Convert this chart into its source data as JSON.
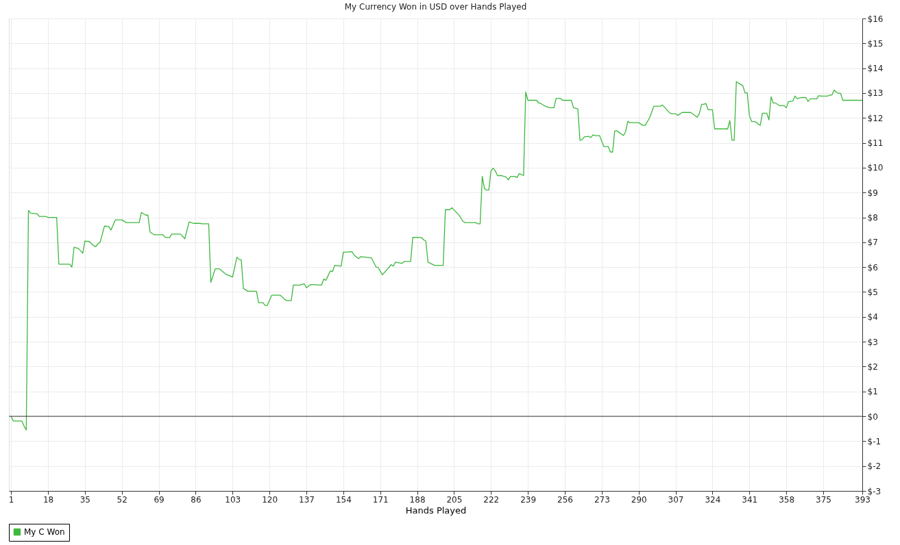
{
  "chart_data": {
    "type": "line",
    "title": "My Currency Won in USD over Hands Played",
    "xlabel": "Hands Played",
    "series": [
      {
        "name": "My C Won",
        "color": "#3cb83c",
        "x": [
          1,
          2,
          6,
          7,
          8,
          9,
          10,
          13,
          14,
          17,
          18,
          22,
          23,
          28,
          29,
          30,
          32,
          34,
          35,
          37,
          39,
          40,
          41,
          42,
          44,
          46,
          47,
          49,
          52,
          54,
          60,
          61,
          63,
          64,
          65,
          67,
          71,
          72,
          74,
          75,
          79,
          81,
          83,
          85,
          88,
          89,
          92,
          93,
          95,
          97,
          100,
          103,
          105,
          106,
          107,
          108,
          110,
          114,
          115,
          117,
          118,
          119,
          121,
          125,
          127,
          128,
          130,
          131,
          134,
          136,
          137,
          139,
          144,
          145,
          146,
          148,
          149,
          150,
          153,
          154,
          158,
          159,
          161,
          162,
          167,
          169,
          170,
          172,
          175,
          176,
          177,
          178,
          181,
          182,
          185,
          186,
          190,
          191,
          192,
          193,
          196,
          200,
          201,
          203,
          204,
          207,
          208,
          209,
          210,
          215,
          216,
          217,
          218,
          219,
          220,
          221,
          222,
          223,
          224,
          225,
          227,
          229,
          230,
          231,
          233,
          234,
          235,
          236,
          237,
          238,
          239,
          243,
          244,
          245,
          247,
          249,
          251,
          252,
          254,
          255,
          259,
          260,
          262,
          263,
          264,
          265,
          267,
          268,
          269,
          270,
          272,
          274,
          276,
          277,
          278,
          279,
          280,
          283,
          284,
          285,
          286,
          290,
          292,
          293,
          295,
          297,
          300,
          301,
          304,
          305,
          307,
          308,
          310,
          314,
          317,
          318,
          319,
          320,
          321,
          322,
          324,
          325,
          331,
          332,
          333,
          334,
          335,
          336,
          338,
          339,
          340,
          341,
          342,
          344,
          345,
          346,
          347,
          349,
          350,
          351,
          352,
          353,
          355,
          357,
          358,
          359,
          361,
          362,
          363,
          365,
          367,
          368,
          369,
          372,
          373,
          374,
          377,
          378,
          379,
          380,
          381,
          382,
          383,
          384,
          393
        ],
        "values": [
          0,
          -0.19,
          -0.19,
          -0.4,
          -0.55,
          8.28,
          8.17,
          8.15,
          8.04,
          8.04,
          8.0,
          8.0,
          6.12,
          6.12,
          6.0,
          6.8,
          6.75,
          6.56,
          7.05,
          7.03,
          6.86,
          6.83,
          6.94,
          7.0,
          7.65,
          7.63,
          7.49,
          7.9,
          7.9,
          7.79,
          7.79,
          8.2,
          8.09,
          8.09,
          7.41,
          7.3,
          7.3,
          7.19,
          7.19,
          7.33,
          7.33,
          7.14,
          7.82,
          7.76,
          7.76,
          7.74,
          7.74,
          5.39,
          5.93,
          5.93,
          5.71,
          5.6,
          6.4,
          6.31,
          6.29,
          5.14,
          5.03,
          5.03,
          4.57,
          4.57,
          4.46,
          4.46,
          4.87,
          4.87,
          4.7,
          4.65,
          4.65,
          5.28,
          5.28,
          5.33,
          5.17,
          5.3,
          5.28,
          5.52,
          5.47,
          5.85,
          5.82,
          6.07,
          6.04,
          6.6,
          6.62,
          6.48,
          6.34,
          6.42,
          6.37,
          6.01,
          5.99,
          5.69,
          5.99,
          6.1,
          6.04,
          6.2,
          6.15,
          6.23,
          6.23,
          7.2,
          7.19,
          7.1,
          7.05,
          6.2,
          6.07,
          6.07,
          8.31,
          8.31,
          8.39,
          8.12,
          8.0,
          7.85,
          7.79,
          7.79,
          7.74,
          7.74,
          9.65,
          9.16,
          9.1,
          9.1,
          9.87,
          9.98,
          9.87,
          9.68,
          9.68,
          9.62,
          9.51,
          9.65,
          9.65,
          9.6,
          9.76,
          9.73,
          9.68,
          13.04,
          12.71,
          12.71,
          12.6,
          12.58,
          12.47,
          12.41,
          12.41,
          12.79,
          12.79,
          12.71,
          12.71,
          12.41,
          12.36,
          11.1,
          11.13,
          11.24,
          11.26,
          11.21,
          11.32,
          11.29,
          11.29,
          10.85,
          10.85,
          10.63,
          10.63,
          11.48,
          11.48,
          11.29,
          11.45,
          11.86,
          11.81,
          11.81,
          11.7,
          11.7,
          12.0,
          12.47,
          12.47,
          12.52,
          12.23,
          12.17,
          12.17,
          12.1,
          12.22,
          12.22,
          12.03,
          12.19,
          12.55,
          12.55,
          12.58,
          12.33,
          12.33,
          11.56,
          11.56,
          11.89,
          11.1,
          11.1,
          13.46,
          13.4,
          13.29,
          13.01,
          13.01,
          12.1,
          11.86,
          11.84,
          11.76,
          11.7,
          12.19,
          12.19,
          11.92,
          12.85,
          12.6,
          12.6,
          12.49,
          12.49,
          12.41,
          12.66,
          12.68,
          12.88,
          12.78,
          12.82,
          12.82,
          12.66,
          12.77,
          12.77,
          12.9,
          12.88,
          12.88,
          12.92,
          12.92,
          13.12,
          13.04,
          12.99,
          12.99,
          12.71,
          12.71
        ]
      }
    ],
    "xlim": [
      0,
      393
    ],
    "xticks": [
      1,
      18,
      35,
      52,
      69,
      86,
      103,
      120,
      137,
      154,
      171,
      188,
      205,
      222,
      239,
      256,
      273,
      290,
      307,
      324,
      341,
      358,
      375,
      393
    ],
    "ylim": [
      -3,
      16
    ],
    "yticks": [
      {
        "value": 16,
        "label": "$16"
      },
      {
        "value": 15,
        "label": "$15"
      },
      {
        "value": 14,
        "label": "$14"
      },
      {
        "value": 13,
        "label": "$13"
      },
      {
        "value": 12,
        "label": "$12"
      },
      {
        "value": 11,
        "label": "$11"
      },
      {
        "value": 10,
        "label": "$10"
      },
      {
        "value": 9,
        "label": "$9"
      },
      {
        "value": 8,
        "label": "$8"
      },
      {
        "value": 7,
        "label": "$7"
      },
      {
        "value": 6,
        "label": "$6"
      },
      {
        "value": 5,
        "label": "$5"
      },
      {
        "value": 4,
        "label": "$4"
      },
      {
        "value": 3,
        "label": "$3"
      },
      {
        "value": 2,
        "label": "$2"
      },
      {
        "value": 1,
        "label": "$1"
      },
      {
        "value": 0,
        "label": "$0"
      },
      {
        "value": -1,
        "label": "$-1"
      },
      {
        "value": -2,
        "label": "$-2"
      },
      {
        "value": -3,
        "label": "$-3"
      }
    ],
    "ref_lines": [
      {
        "axis": "y",
        "value": 0,
        "color": "#333333"
      }
    ],
    "grid": true,
    "legend": "bottom left",
    "marker": "none",
    "line_style": "solid"
  }
}
